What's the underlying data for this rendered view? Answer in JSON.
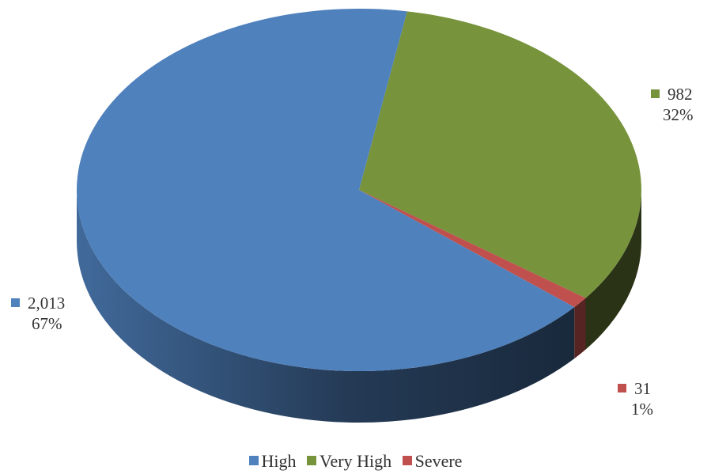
{
  "chart_data": {
    "type": "pie",
    "style": "3d",
    "categories": [
      "High",
      "Very High",
      "Severe"
    ],
    "values": [
      2013,
      982,
      31
    ],
    "value_labels": [
      "2,013",
      "982",
      "31"
    ],
    "percent_labels": [
      "67%",
      "32%",
      "1%"
    ],
    "colors": [
      "#4F81BD",
      "#77933C",
      "#C0504D"
    ],
    "legend": {
      "position": "bottom",
      "items": [
        "High",
        "Very High",
        "Severe"
      ]
    }
  }
}
